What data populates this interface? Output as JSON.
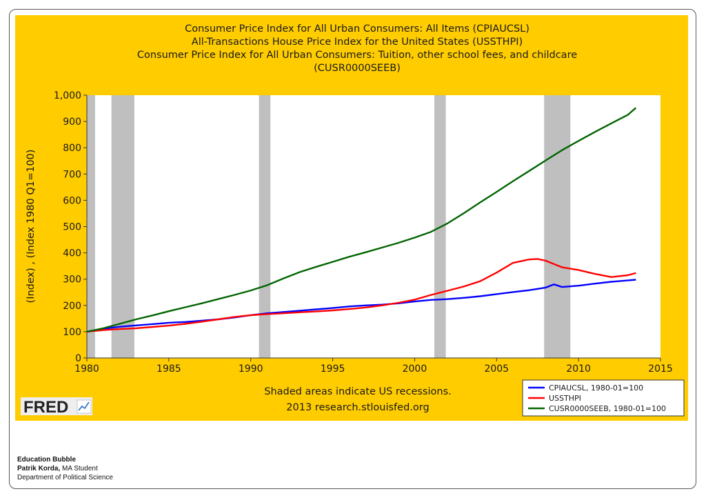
{
  "chart_data": {
    "type": "line",
    "title": [
      "Consumer Price Index for All Urban Consumers: All Items (CPIAUCSL)",
      "All-Transactions House Price Index for the United States (USSTHPI)",
      "Consumer Price Index for All Urban Consumers: Tuition, other school fees, and childcare",
      "(CUSR0000SEEB)"
    ],
    "ylabel": "(Index) , (Index 1980 Q1=100)",
    "xlim": [
      1980,
      2015
    ],
    "ylim": [
      0,
      1000
    ],
    "xticks": [
      1980,
      1985,
      1990,
      1995,
      2000,
      2005,
      2010,
      2015
    ],
    "yticks": [
      0,
      100,
      200,
      300,
      400,
      500,
      600,
      700,
      800,
      900,
      1000
    ],
    "ytick_labels": [
      "0",
      "100",
      "200",
      "300",
      "400",
      "500",
      "600",
      "700",
      "800",
      "900",
      "1,000"
    ],
    "grid": false,
    "recessions": [
      [
        1980.0,
        1980.5
      ],
      [
        1981.5,
        1982.9
      ],
      [
        1990.5,
        1991.2
      ],
      [
        2001.2,
        2001.9
      ],
      [
        2007.9,
        2009.5
      ]
    ],
    "series": [
      {
        "name": "CPIAUCSL, 1980-01=100",
        "color": "#0000FF",
        "x": [
          1980,
          1981,
          1982,
          1983,
          1984,
          1985,
          1986,
          1987,
          1988,
          1989,
          1990,
          1991,
          1992,
          1993,
          1994,
          1995,
          1996,
          1997,
          1998,
          1999,
          2000,
          2001,
          2002,
          2003,
          2004,
          2005,
          2006,
          2007,
          2008,
          2008.5,
          2009,
          2010,
          2011,
          2012,
          2013,
          2013.5
        ],
        "y": [
          100,
          111,
          119,
          124,
          129,
          134,
          137,
          142,
          147,
          154,
          163,
          170,
          175,
          180,
          185,
          190,
          196,
          200,
          203,
          208,
          215,
          221,
          224,
          229,
          235,
          243,
          251,
          258,
          268,
          280,
          270,
          275,
          283,
          290,
          295,
          298
        ]
      },
      {
        "name": "USSTHPI",
        "color": "#FF0000",
        "x": [
          1980,
          1981,
          1982,
          1983,
          1984,
          1985,
          1986,
          1987,
          1988,
          1989,
          1990,
          1991,
          1992,
          1993,
          1994,
          1995,
          1996,
          1997,
          1998,
          1999,
          2000,
          2001,
          2002,
          2003,
          2004,
          2005,
          2006,
          2007,
          2007.5,
          2008,
          2009,
          2010,
          2011,
          2012,
          2013,
          2013.5
        ],
        "y": [
          100,
          106,
          110,
          113,
          118,
          123,
          130,
          138,
          147,
          156,
          163,
          167,
          170,
          174,
          177,
          181,
          186,
          192,
          200,
          210,
          222,
          240,
          256,
          272,
          292,
          325,
          362,
          375,
          377,
          370,
          345,
          335,
          320,
          308,
          315,
          323
        ]
      },
      {
        "name": "CUSR0000SEEB, 1980-01=100",
        "color": "#006400",
        "x": [
          1980,
          1981,
          1982,
          1983,
          1984,
          1985,
          1986,
          1987,
          1988,
          1989,
          1990,
          1991,
          1992,
          1993,
          1994,
          1995,
          1996,
          1997,
          1998,
          1999,
          2000,
          2001,
          2002,
          2003,
          2004,
          2005,
          2006,
          2007,
          2008,
          2009,
          2010,
          2011,
          2012,
          2013,
          2013.5
        ],
        "y": [
          100,
          113,
          130,
          147,
          162,
          178,
          193,
          208,
          224,
          240,
          257,
          277,
          303,
          327,
          347,
          366,
          385,
          402,
          420,
          438,
          458,
          480,
          512,
          551,
          592,
          632,
          673,
          712,
          752,
          791,
          826,
          860,
          893,
          925,
          952
        ]
      }
    ],
    "annotations": [
      "Shaded areas indicate US recessions.",
      "2013 research.stlouisfed.org"
    ]
  },
  "logo_text": "FRED",
  "footer": {
    "title": "Education Bubble",
    "author_name": "Patrik Korda,",
    "author_role": " MA Student",
    "department": "Department of Political Science"
  },
  "colors": {
    "panel_bg": "#FFCC00",
    "plot_bg": "#FFFFFF",
    "recession_shade": "#BFBFBF",
    "logo_bg": "#EEEEEE"
  }
}
